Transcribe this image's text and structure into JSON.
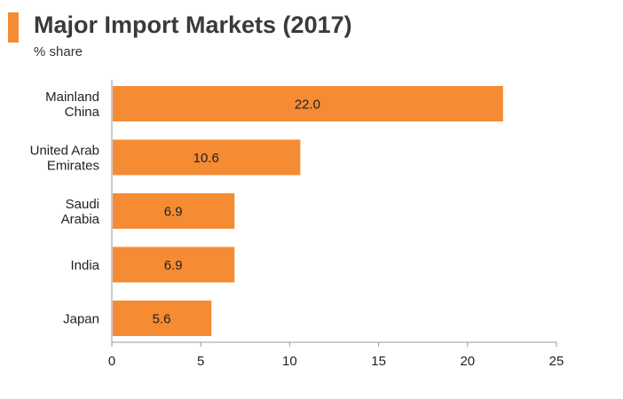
{
  "title": "Major Import Markets (2017)",
  "subtitle": "% share",
  "colors": {
    "bar": "#f58b33",
    "title_accent": "#f58b33",
    "axis": "#999999",
    "text": "#222222"
  },
  "chart_data": {
    "type": "bar",
    "orientation": "horizontal",
    "title": "Major Import Markets (2017)",
    "subtitle": "% share",
    "categories": [
      [
        "Mainland",
        "China"
      ],
      [
        "United Arab",
        "Emirates"
      ],
      [
        "Saudi",
        "Arabia"
      ],
      [
        "India"
      ],
      [
        "Japan"
      ]
    ],
    "values": [
      22.0,
      10.6,
      6.9,
      6.9,
      5.6
    ],
    "value_labels": [
      "22.0",
      "10.6",
      "6.9",
      "6.9",
      "5.6"
    ],
    "xlim": [
      0,
      25
    ],
    "xticks": [
      0,
      5,
      10,
      15,
      20,
      25
    ],
    "grid": false,
    "legend": "none"
  }
}
